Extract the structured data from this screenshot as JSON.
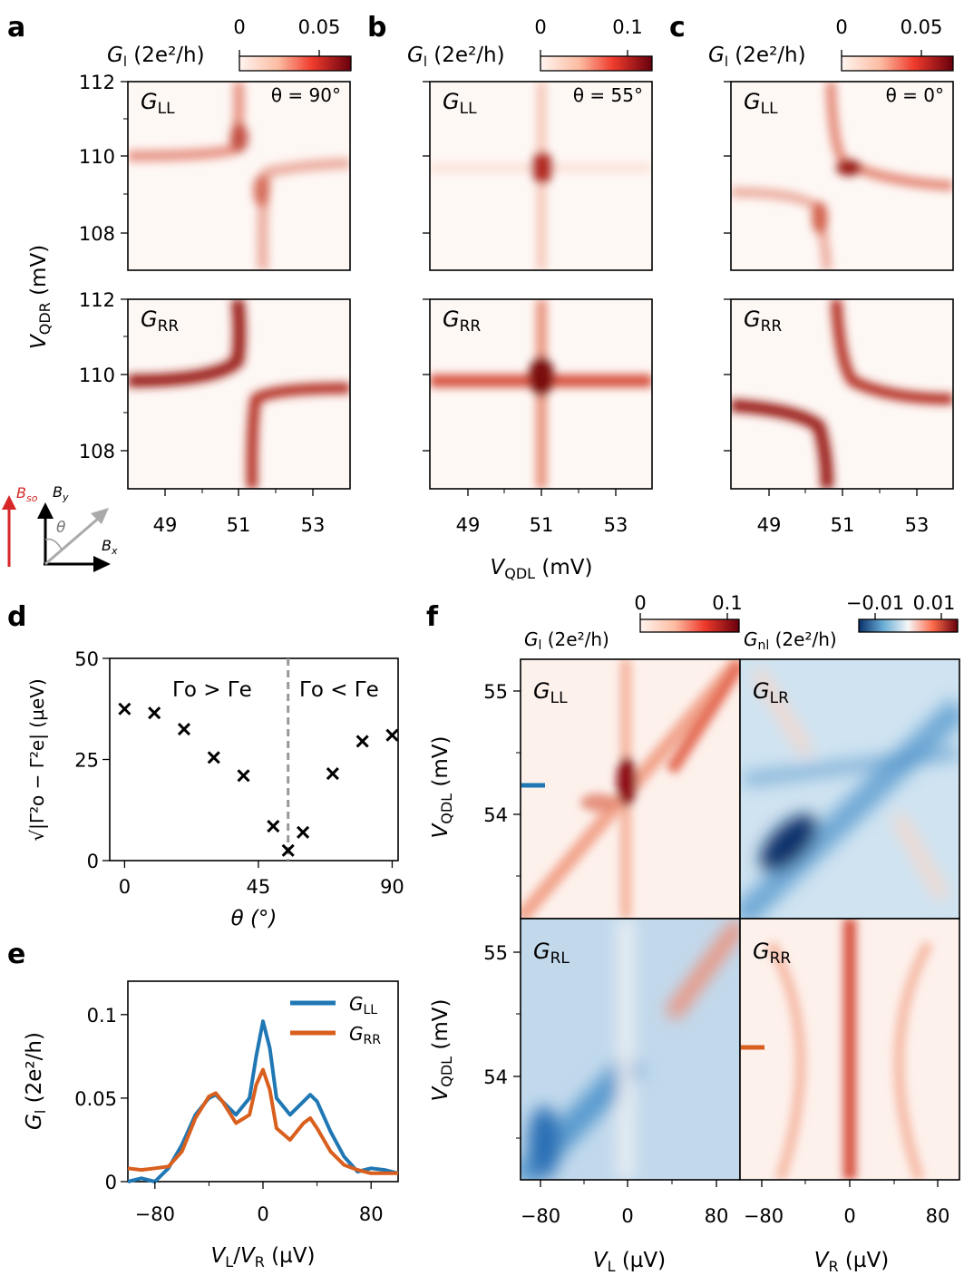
{
  "panel_letters": [
    "a",
    "b",
    "c",
    "d",
    "e",
    "f"
  ],
  "colors": {
    "seq_dark": "#a50f15",
    "seq_light": "#fff5f0",
    "div_neg": "#08519c",
    "div_mid": "#f7f7f7",
    "div_pos": "#a50f15",
    "marker_blue": "#1f77b4",
    "marker_orange": "#d95f1e",
    "gray": "#999999"
  },
  "labels": {
    "gl_main": "G",
    "gl_sub": "l",
    "gl_unit": " (2e²/h)",
    "gnl_sub": "nl",
    "vqdr_main": "V",
    "vqdr_sub": "QDR",
    "vqdr_unit": " (mV)",
    "vqdl_main": "V",
    "vqdl_sub": "QDL",
    "vqdl_unit": " (mV)",
    "vl_main": "V",
    "vl_sub": "L",
    "vl_unit": " (µV)",
    "vr_main": "V",
    "vr_sub": "R",
    "vr_unit": " (µV)",
    "vlvr_a": "V",
    "vlvr_sub_a": "L",
    "vlvr_sep": "/",
    "vlvr_b": "V",
    "vlvr_sub_b": "R",
    "vlvr_unit": " (µV)",
    "theta_axis": "θ (°)",
    "d_ylabel": "√|Γ²o − Γ²e| (µeV)",
    "GLL_main": "G",
    "GLL_sub": "LL",
    "GRR_main": "G",
    "GRR_sub": "RR",
    "GLR_main": "G",
    "GLR_sub": "LR",
    "GRL_main": "G",
    "GRL_sub": "RL",
    "theta_a": "θ = 90°",
    "theta_b": "θ = 55°",
    "theta_c": "θ = 0°",
    "region_left": "Γo > Γe",
    "region_right": "Γo < Γe",
    "bso_main": "B",
    "bso_sub": "so",
    "by_main": "B",
    "by_sub": "y",
    "bx_main": "B",
    "bx_sub": "x",
    "theta_sym": "θ"
  },
  "colorbars": {
    "a": {
      "ticks": [
        "0",
        "0.05"
      ],
      "range": [
        0,
        0.07
      ]
    },
    "b": {
      "ticks": [
        "0",
        "0.1"
      ],
      "range": [
        0,
        0.12
      ]
    },
    "c": {
      "ticks": [
        "0",
        "0.05"
      ],
      "range": [
        0,
        0.07
      ]
    },
    "f_left": {
      "ticks": [
        "0",
        "0.1"
      ],
      "range": [
        0,
        0.11
      ]
    },
    "f_right": {
      "ticks": [
        "−0.01",
        "0.01"
      ],
      "range": [
        -0.015,
        0.015
      ]
    }
  },
  "ticks": {
    "vqdr": [
      "112",
      "110",
      "108"
    ],
    "vqdl_abc": [
      "49",
      "51",
      "53"
    ],
    "d_x": [
      "0",
      "45",
      "90"
    ],
    "d_y": [
      "0",
      "25",
      "50"
    ],
    "e_x": [
      "−80",
      "0",
      "80"
    ],
    "e_y": [
      "0",
      "0.05",
      "0.1"
    ],
    "f_y": [
      "55",
      "54"
    ],
    "f_x": [
      "−80",
      "0",
      "80"
    ]
  },
  "chart_data": [
    {
      "type": "heatmap",
      "panel": "a",
      "title": "GLL / GRR, θ = 90°",
      "xlabel": "VQDL (mV)",
      "ylabel": "VQDR (mV)",
      "xlim": [
        48,
        54
      ],
      "ylim": [
        107,
        112
      ]
    },
    {
      "type": "heatmap",
      "panel": "b",
      "title": "GLL / GRR, θ = 55°",
      "xlabel": "VQDL (mV)",
      "ylabel": "VQDR (mV)",
      "xlim": [
        48,
        54
      ],
      "ylim": [
        107,
        112
      ]
    },
    {
      "type": "heatmap",
      "panel": "c",
      "title": "GLL / GRR, θ = 0°",
      "xlabel": "VQDL (mV)",
      "ylabel": "VQDR (mV)",
      "xlim": [
        48,
        54
      ],
      "ylim": [
        107,
        112
      ]
    },
    {
      "type": "scatter",
      "panel": "d",
      "xlabel": "θ (°)",
      "ylabel": "√|Γo²−Γe²| (µeV)",
      "xlim": [
        -5,
        92
      ],
      "ylim": [
        0,
        50
      ],
      "x": [
        0,
        10,
        20,
        30,
        40,
        50,
        55,
        60,
        70,
        80,
        90
      ],
      "y": [
        37.5,
        36.5,
        32.5,
        25.5,
        21,
        8.5,
        2.5,
        7,
        21.5,
        29.5,
        31
      ],
      "vline": 55
    },
    {
      "type": "line",
      "panel": "e",
      "xlabel": "VL/VR (µV)",
      "ylabel": "Gl (2e²/h)",
      "xlim": [
        -100,
        100
      ],
      "ylim": [
        0,
        0.12
      ],
      "series": [
        {
          "name": "GLL",
          "x": [
            -100,
            -90,
            -80,
            -70,
            -60,
            -50,
            -40,
            -35,
            -30,
            -20,
            -10,
            -5,
            0,
            5,
            10,
            20,
            30,
            35,
            40,
            50,
            60,
            70,
            80,
            90,
            100
          ],
          "y": [
            0.0,
            0.002,
            0.0,
            0.008,
            0.022,
            0.04,
            0.05,
            0.052,
            0.048,
            0.04,
            0.05,
            0.075,
            0.096,
            0.08,
            0.05,
            0.04,
            0.048,
            0.052,
            0.048,
            0.03,
            0.015,
            0.006,
            0.008,
            0.007,
            0.005
          ]
        },
        {
          "name": "GRR",
          "x": [
            -100,
            -90,
            -80,
            -70,
            -60,
            -50,
            -40,
            -35,
            -30,
            -20,
            -10,
            -5,
            0,
            5,
            10,
            20,
            30,
            35,
            40,
            50,
            60,
            70,
            80,
            90,
            100
          ],
          "y": [
            0.008,
            0.007,
            0.008,
            0.009,
            0.018,
            0.038,
            0.051,
            0.053,
            0.048,
            0.035,
            0.04,
            0.058,
            0.067,
            0.055,
            0.032,
            0.025,
            0.035,
            0.038,
            0.032,
            0.018,
            0.01,
            0.007,
            0.005,
            0.005,
            0.005
          ]
        }
      ]
    },
    {
      "type": "heatmap",
      "panel": "f",
      "title": "GLL, GLR, GRL, GRR",
      "xlabel": "VL / VR (µV)",
      "ylabel": "VQDL (mV)",
      "xlim": [
        -100,
        100
      ],
      "ylim": [
        53.3,
        55.3
      ]
    }
  ]
}
